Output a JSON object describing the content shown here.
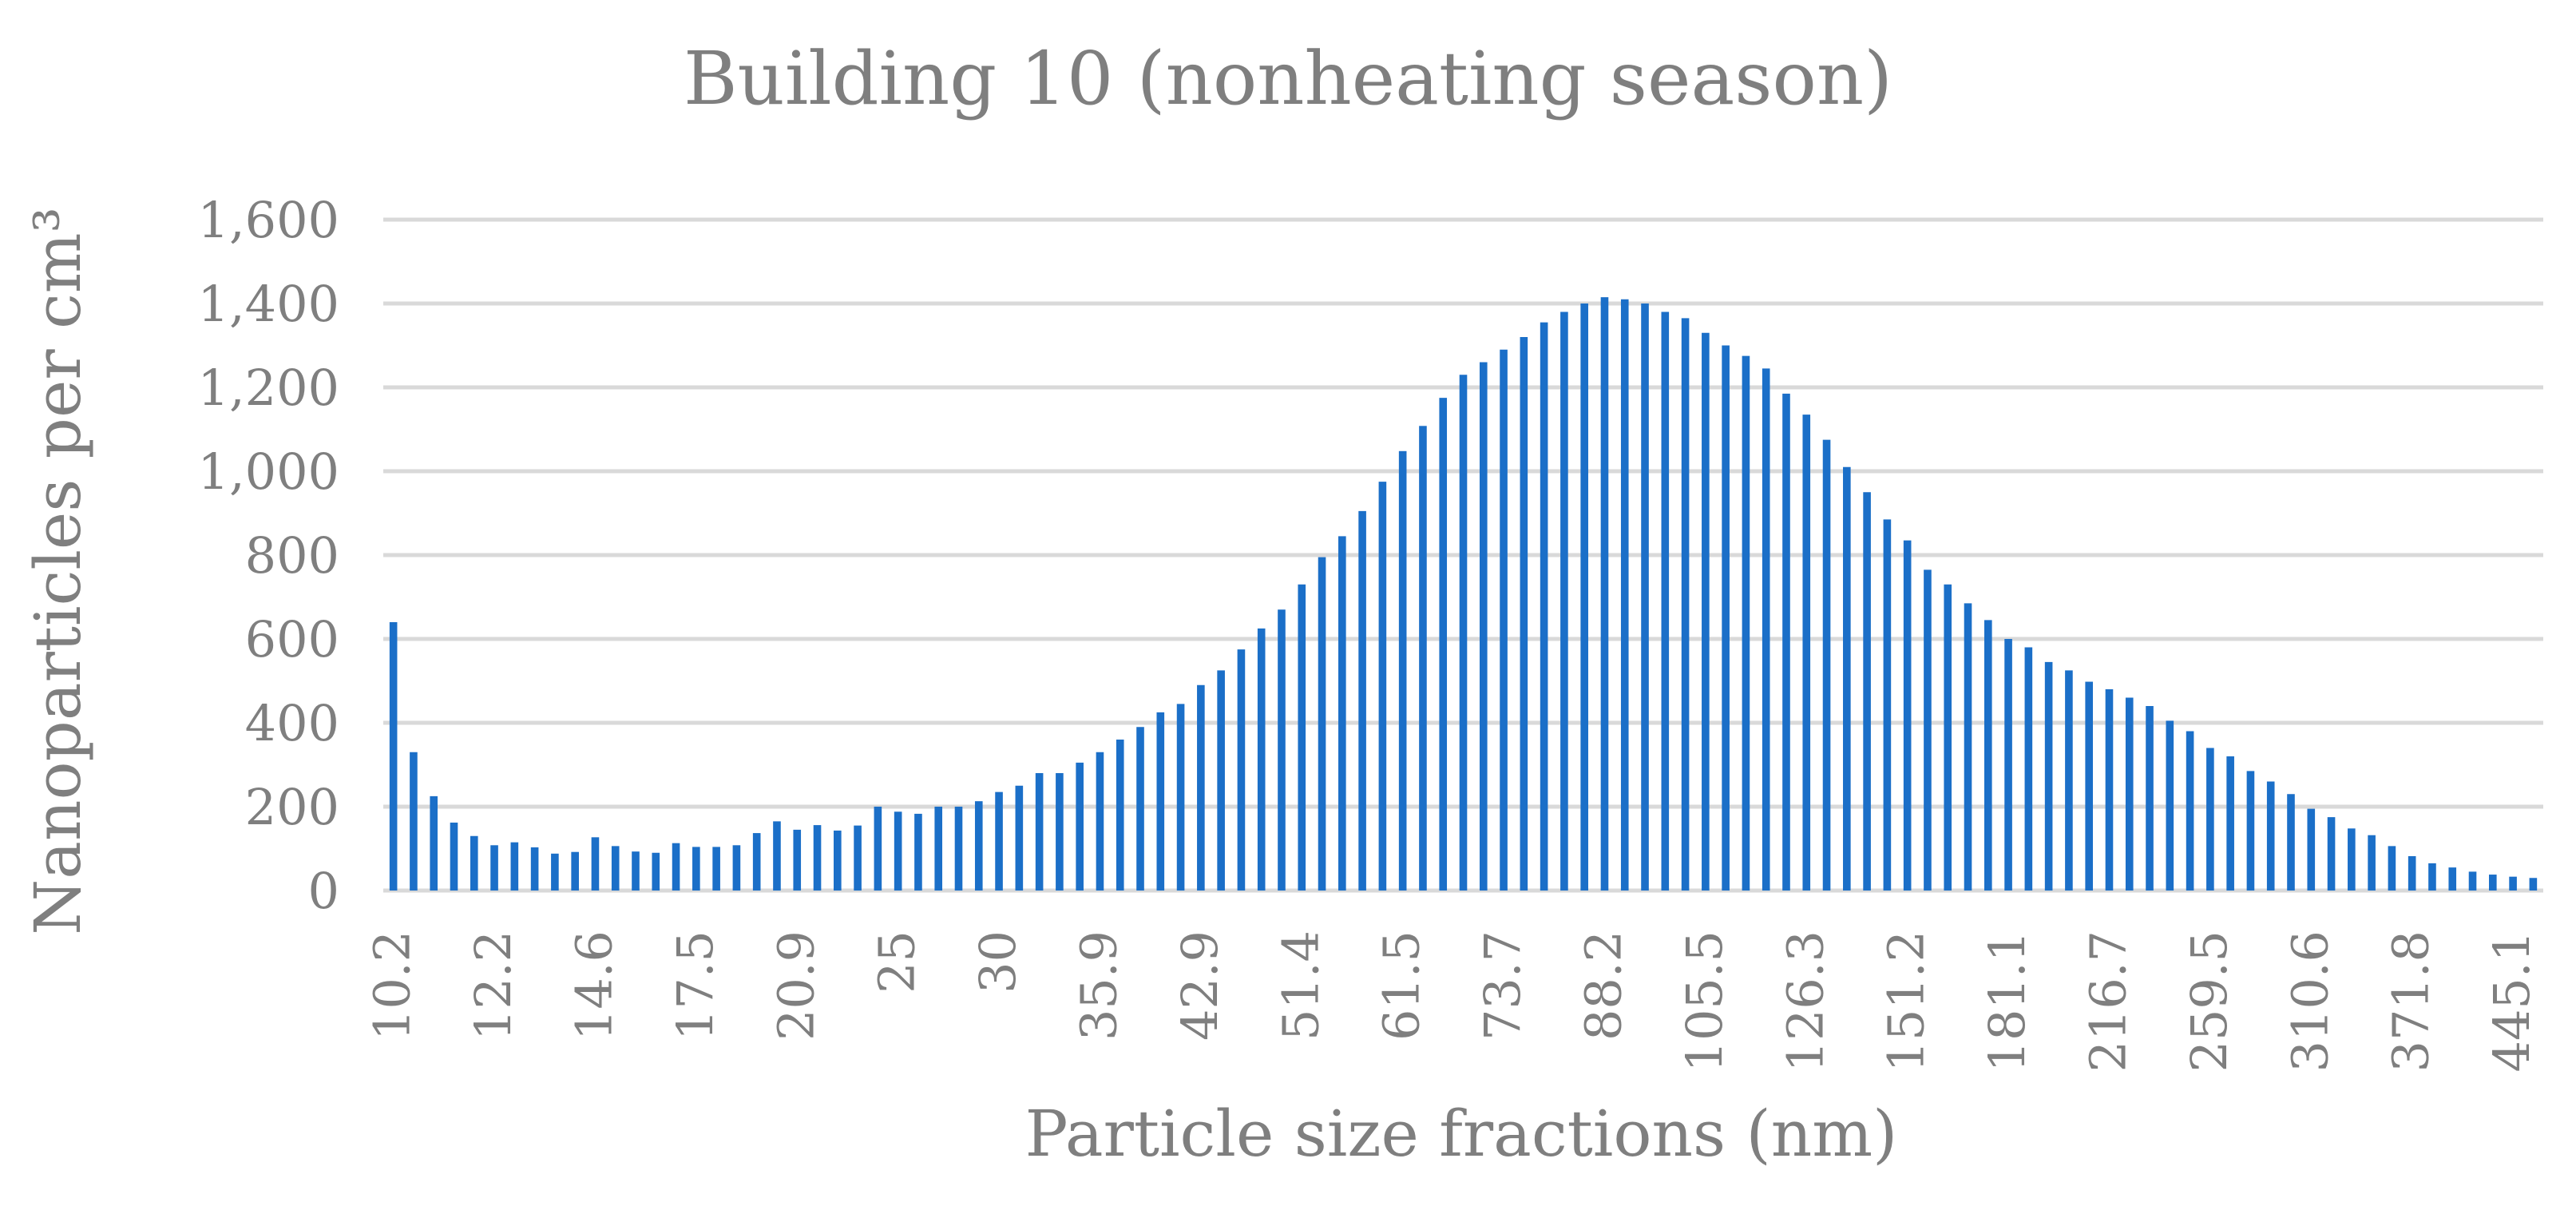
{
  "chart_data": {
    "type": "bar",
    "title": "Building 10 (nonheating season)",
    "xlabel": "Particle size fractions (nm)",
    "ylabel": "Nanoparticles per cm³",
    "ylim": [
      0,
      1600
    ],
    "y_ticks": [
      "0",
      "200",
      "400",
      "600",
      "800",
      "1,000",
      "1,200",
      "1,400",
      "1,600"
    ],
    "y_tick_values": [
      0,
      200,
      400,
      600,
      800,
      1000,
      1200,
      1400,
      1600
    ],
    "grid": true,
    "legend": "none",
    "x_tick_labels": [
      "10.2",
      "12.2",
      "14.6",
      "17.5",
      "20.9",
      "25",
      "30",
      "35.9",
      "42.9",
      "51.4",
      "61.5",
      "73.7",
      "88.2",
      "105.5",
      "126.3",
      "151.2",
      "181.1",
      "216.7",
      "259.5",
      "310.6",
      "371.8",
      "445.1"
    ],
    "x_tick_label_step": 5,
    "series": [
      {
        "name": "Nanoparticles per cm³",
        "color": "#1b6fc8",
        "values": [
          640,
          330,
          225,
          162,
          130,
          108,
          115,
          103,
          88,
          92,
          127,
          106,
          93,
          90,
          113,
          104,
          104,
          108,
          137,
          165,
          145,
          156,
          143,
          155,
          200,
          188,
          183,
          200,
          200,
          213,
          235,
          250,
          280,
          280,
          305,
          330,
          360,
          390,
          425,
          445,
          490,
          525,
          575,
          625,
          670,
          730,
          795,
          845,
          905,
          975,
          1048,
          1108,
          1175,
          1230,
          1260,
          1290,
          1320,
          1355,
          1380,
          1400,
          1415,
          1410,
          1400,
          1380,
          1365,
          1330,
          1300,
          1275,
          1245,
          1185,
          1135,
          1075,
          1010,
          950,
          885,
          835,
          765,
          730,
          685,
          645,
          600,
          580,
          545,
          525,
          498,
          480,
          460,
          440,
          405,
          380,
          340,
          320,
          285,
          260,
          230,
          195,
          175,
          148,
          132,
          106,
          82,
          65,
          55,
          45,
          38,
          33,
          30
        ]
      }
    ]
  }
}
